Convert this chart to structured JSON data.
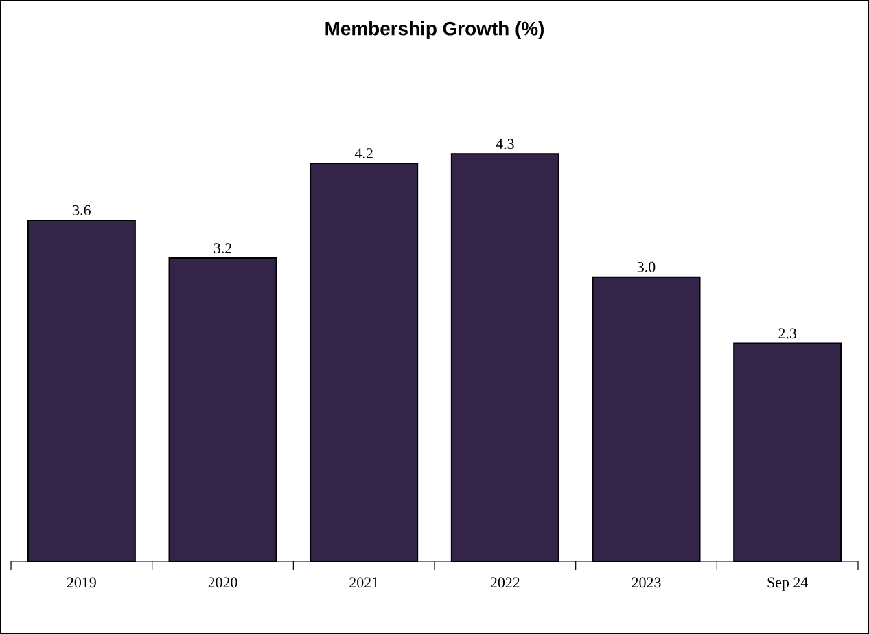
{
  "chart_data": {
    "type": "bar",
    "title": "Membership Growth (%)",
    "categories": [
      "2019",
      "2020",
      "2021",
      "2022",
      "2023",
      "Sep 24"
    ],
    "values": [
      3.6,
      3.2,
      4.2,
      4.3,
      3.0,
      2.3
    ],
    "value_labels": [
      "3.6",
      "3.2",
      "4.2",
      "4.3",
      "3.0",
      "2.3"
    ],
    "color": "#33254a"
  }
}
